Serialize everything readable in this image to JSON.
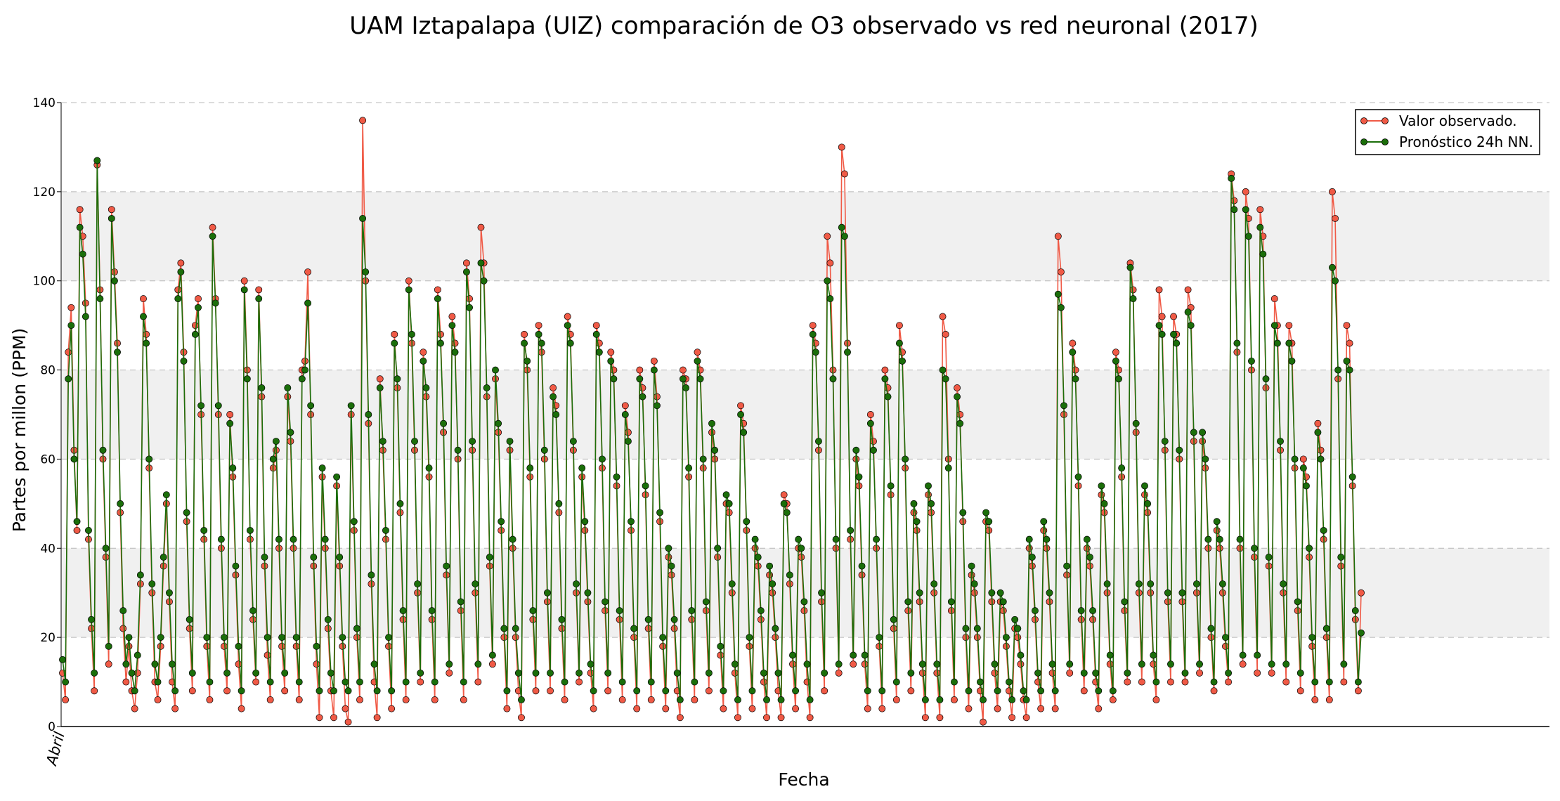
{
  "chart_data": {
    "type": "line",
    "title": "UAM Iztapalapa (UIZ) comparación de O3 observado vs red neuronal (2017)",
    "xlabel": "Fecha",
    "ylabel": "Partes por millon (PPM)",
    "xtick_labels": [
      "Abril"
    ],
    "yticks": [
      0,
      20,
      40,
      60,
      80,
      100,
      120,
      140
    ],
    "ylim": [
      0,
      140
    ],
    "grid": true,
    "shaded_bands": [
      [
        20,
        40
      ],
      [
        60,
        80
      ],
      [
        100,
        120
      ]
    ],
    "legend_position": "top-right",
    "series_style": {
      "observed": {
        "color": "#f05a46",
        "marker": "circle"
      },
      "forecast": {
        "color": "#1b6e0a",
        "marker": "circle"
      }
    },
    "series": [
      {
        "name": "Valor observado.",
        "values": [
          12,
          6,
          84,
          94,
          62,
          44,
          116,
          110,
          95,
          42,
          22,
          8,
          126,
          98,
          60,
          38,
          14,
          116,
          102,
          86,
          48,
          22,
          10,
          18,
          8,
          4,
          12,
          32,
          96,
          88,
          58,
          30,
          10,
          6,
          18,
          36,
          50,
          28,
          10,
          4,
          98,
          104,
          84,
          46,
          22,
          8,
          90,
          96,
          70,
          42,
          18,
          6,
          112,
          96,
          70,
          40,
          18,
          8,
          70,
          56,
          34,
          14,
          4,
          100,
          80,
          42,
          24,
          10,
          98,
          74,
          36,
          16,
          6,
          58,
          62,
          40,
          18,
          8,
          74,
          64,
          40,
          18,
          6,
          80,
          82,
          102,
          70,
          36,
          14,
          2,
          56,
          40,
          22,
          8,
          2,
          54,
          36,
          18,
          4,
          1,
          70,
          44,
          20,
          6,
          136,
          100,
          68,
          32,
          10,
          2,
          78,
          62,
          42,
          18,
          4,
          88,
          76,
          48,
          24,
          6,
          100,
          86,
          62,
          30,
          10,
          84,
          74,
          56,
          24,
          6,
          98,
          88,
          66,
          34,
          12,
          92,
          86,
          60,
          26,
          6,
          104,
          96,
          62,
          30,
          10,
          112,
          104,
          74,
          36,
          14,
          78,
          66,
          44,
          20,
          4,
          62,
          40,
          20,
          8,
          2,
          88,
          80,
          56,
          24,
          8,
          90,
          84,
          60,
          28,
          8,
          76,
          72,
          48,
          22,
          6,
          92,
          88,
          62,
          30,
          10,
          56,
          44,
          28,
          12,
          4,
          90,
          86,
          58,
          26,
          8,
          84,
          80,
          54,
          24,
          6,
          72,
          66,
          44,
          20,
          4,
          80,
          76,
          52,
          22,
          6,
          82,
          74,
          46,
          18,
          4,
          38,
          34,
          22,
          8,
          2,
          80,
          78,
          56,
          24,
          6,
          84,
          80,
          58,
          26,
          8,
          66,
          60,
          38,
          16,
          4,
          50,
          48,
          30,
          12,
          2,
          72,
          68,
          44,
          18,
          4,
          40,
          36,
          24,
          10,
          2,
          34,
          30,
          20,
          8,
          2,
          52,
          50,
          32,
          14,
          4,
          40,
          38,
          26,
          10,
          2,
          90,
          86,
          62,
          28,
          8,
          110,
          104,
          80,
          40,
          12,
          130,
          124,
          86,
          42,
          14,
          60,
          54,
          34,
          14,
          4,
          70,
          64,
          40,
          18,
          4,
          80,
          76,
          52,
          22,
          6,
          90,
          84,
          58,
          26,
          8,
          48,
          44,
          28,
          12,
          2,
          52,
          48,
          30,
          12,
          2,
          92,
          88,
          60,
          26,
          6,
          76,
          70,
          46,
          20,
          4,
          34,
          30,
          20,
          8,
          1,
          46,
          44,
          28,
          12,
          4,
          28,
          26,
          18,
          8,
          2,
          22,
          20,
          14,
          6,
          2,
          40,
          36,
          24,
          10,
          4,
          44,
          40,
          28,
          12,
          4,
          110,
          102,
          70,
          34,
          12,
          86,
          80,
          54,
          24,
          8,
          40,
          36,
          24,
          10,
          4,
          52,
          48,
          30,
          14,
          6,
          84,
          80,
          56,
          26,
          10,
          104,
          98,
          66,
          30,
          10,
          52,
          48,
          30,
          14,
          6,
          98,
          92,
          62,
          28,
          10,
          92,
          88,
          60,
          28,
          10,
          98,
          94,
          64,
          30,
          12,
          64,
          58,
          40,
          20,
          8,
          44,
          40,
          30,
          18,
          10,
          124,
          118,
          84,
          40,
          14,
          120,
          114,
          80,
          38,
          12,
          116,
          110,
          76,
          36,
          12,
          96,
          90,
          62,
          30,
          10,
          90,
          86,
          58,
          26,
          8,
          60,
          56,
          38,
          18,
          6,
          68,
          62,
          42,
          20,
          6,
          120,
          114,
          78,
          36,
          10,
          90,
          86,
          54,
          24,
          8,
          30
        ]
      },
      {
        "name": "Pronóstico 24h NN.",
        "values": [
          15,
          10,
          78,
          90,
          60,
          46,
          112,
          106,
          92,
          44,
          24,
          12,
          127,
          96,
          62,
          40,
          18,
          114,
          100,
          84,
          50,
          26,
          14,
          20,
          12,
          8,
          16,
          34,
          92,
          86,
          60,
          32,
          14,
          10,
          20,
          38,
          52,
          30,
          14,
          8,
          96,
          102,
          82,
          48,
          24,
          12,
          88,
          94,
          72,
          44,
          20,
          10,
          110,
          95,
          72,
          42,
          20,
          12,
          68,
          58,
          36,
          18,
          8,
          98,
          78,
          44,
          26,
          12,
          96,
          76,
          38,
          20,
          10,
          60,
          64,
          42,
          20,
          12,
          76,
          66,
          42,
          20,
          10,
          78,
          80,
          95,
          72,
          38,
          18,
          8,
          58,
          42,
          24,
          12,
          8,
          56,
          38,
          20,
          10,
          8,
          72,
          46,
          22,
          10,
          114,
          102,
          70,
          34,
          14,
          8,
          76,
          64,
          44,
          20,
          8,
          86,
          78,
          50,
          26,
          10,
          98,
          88,
          64,
          32,
          12,
          82,
          76,
          58,
          26,
          10,
          96,
          86,
          68,
          36,
          14,
          90,
          84,
          62,
          28,
          10,
          102,
          94,
          64,
          32,
          14,
          104,
          100,
          76,
          38,
          16,
          80,
          68,
          46,
          22,
          8,
          64,
          42,
          22,
          12,
          6,
          86,
          82,
          58,
          26,
          12,
          88,
          86,
          62,
          30,
          12,
          74,
          70,
          50,
          24,
          10,
          90,
          86,
          64,
          32,
          12,
          58,
          46,
          30,
          14,
          8,
          88,
          84,
          60,
          28,
          12,
          82,
          78,
          56,
          26,
          10,
          70,
          64,
          46,
          22,
          8,
          78,
          74,
          54,
          24,
          10,
          80,
          72,
          48,
          20,
          8,
          40,
          36,
          24,
          12,
          6,
          78,
          76,
          58,
          26,
          10,
          82,
          78,
          60,
          28,
          12,
          68,
          62,
          40,
          18,
          8,
          52,
          50,
          32,
          14,
          6,
          70,
          66,
          46,
          20,
          8,
          42,
          38,
          26,
          12,
          6,
          36,
          32,
          22,
          12,
          6,
          50,
          48,
          34,
          16,
          8,
          42,
          40,
          28,
          14,
          6,
          88,
          84,
          64,
          30,
          12,
          100,
          96,
          78,
          42,
          14,
          112,
          110,
          84,
          44,
          16,
          62,
          56,
          36,
          16,
          8,
          68,
          62,
          42,
          20,
          8,
          78,
          74,
          54,
          24,
          10,
          86,
          82,
          60,
          28,
          12,
          50,
          46,
          30,
          14,
          6,
          54,
          50,
          32,
          14,
          6,
          80,
          78,
          58,
          28,
          10,
          74,
          68,
          48,
          22,
          8,
          36,
          32,
          22,
          10,
          6,
          48,
          46,
          30,
          14,
          8,
          30,
          28,
          20,
          10,
          6,
          24,
          22,
          16,
          8,
          6,
          42,
          38,
          26,
          12,
          8,
          46,
          42,
          30,
          14,
          8,
          97,
          94,
          72,
          36,
          14,
          84,
          78,
          56,
          26,
          12,
          42,
          38,
          26,
          12,
          8,
          54,
          50,
          32,
          16,
          8,
          82,
          78,
          58,
          28,
          12,
          103,
          96,
          68,
          32,
          14,
          54,
          50,
          32,
          16,
          10,
          90,
          88,
          64,
          30,
          14,
          88,
          86,
          62,
          30,
          12,
          93,
          90,
          66,
          32,
          14,
          66,
          60,
          42,
          22,
          10,
          46,
          42,
          32,
          20,
          12,
          123,
          116,
          86,
          42,
          16,
          116,
          110,
          82,
          40,
          16,
          112,
          106,
          78,
          38,
          14,
          90,
          86,
          64,
          32,
          14,
          86,
          82,
          60,
          28,
          12,
          58,
          54,
          40,
          20,
          10,
          66,
          60,
          44,
          22,
          10,
          103,
          100,
          80,
          38,
          14,
          82,
          80,
          56,
          26,
          10,
          21
        ]
      }
    ]
  }
}
